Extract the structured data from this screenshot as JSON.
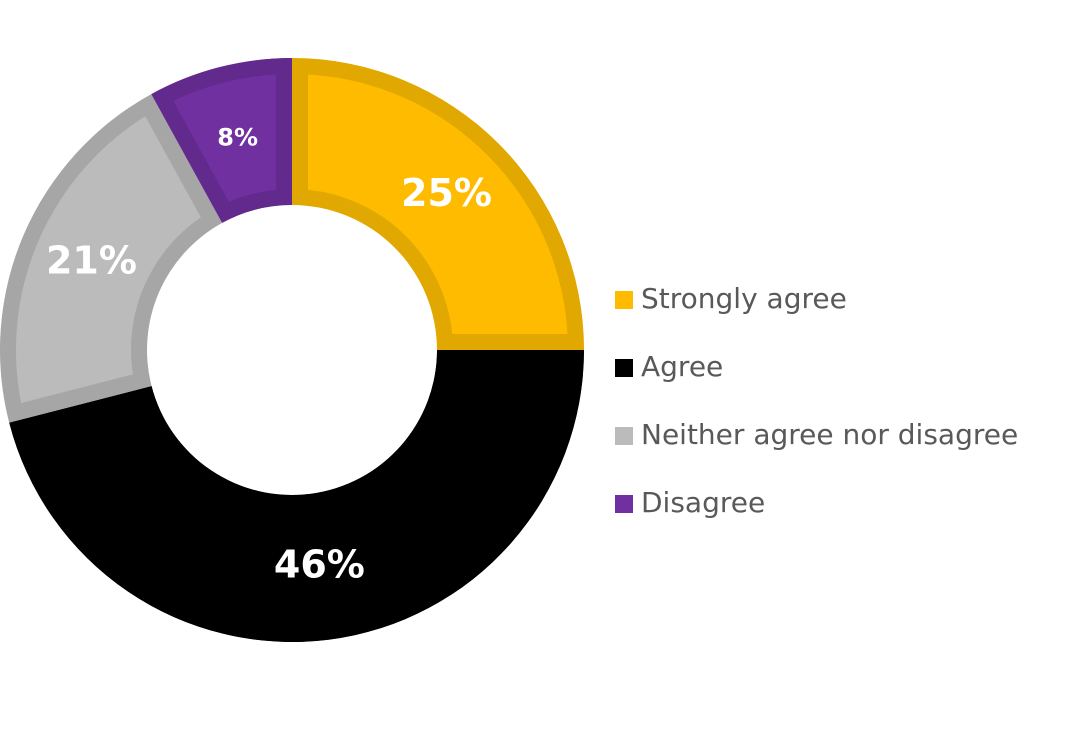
{
  "chart_data": {
    "type": "donut",
    "categories": [
      "Strongly agree",
      "Agree",
      "Neither agree nor disagree",
      "Disagree"
    ],
    "values": [
      25,
      46,
      21,
      8
    ],
    "value_labels": [
      "25%",
      "46%",
      "21%",
      "8%"
    ],
    "colors": [
      "#ffbb00",
      "#000000",
      "#bbbbbb",
      "#7030a0"
    ],
    "edge_colors": [
      "#e0a800",
      "#000000",
      "#a6a6a6",
      "#632a8e"
    ],
    "legend": "right"
  }
}
